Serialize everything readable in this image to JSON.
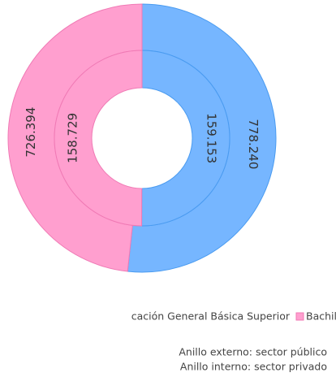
{
  "chart_data": {
    "type": "nested-donut",
    "categories": [
      "cación General Básica Superior",
      "Bachillerato"
    ],
    "colors": [
      "#76b6ff",
      "#ff9fcf"
    ],
    "borders": [
      "#4a9bf0",
      "#f07ab5"
    ],
    "rings": [
      {
        "values": [
          778240,
          726394
        ],
        "value_labels": [
          "778.240",
          "726.394"
        ]
      },
      {
        "values": [
          159153,
          158729
        ],
        "value_labels": [
          "159.153",
          "158.729"
        ]
      }
    ],
    "annotations": [
      "Anillo externo: sector público",
      "Anillo interno: sector privado"
    ]
  }
}
